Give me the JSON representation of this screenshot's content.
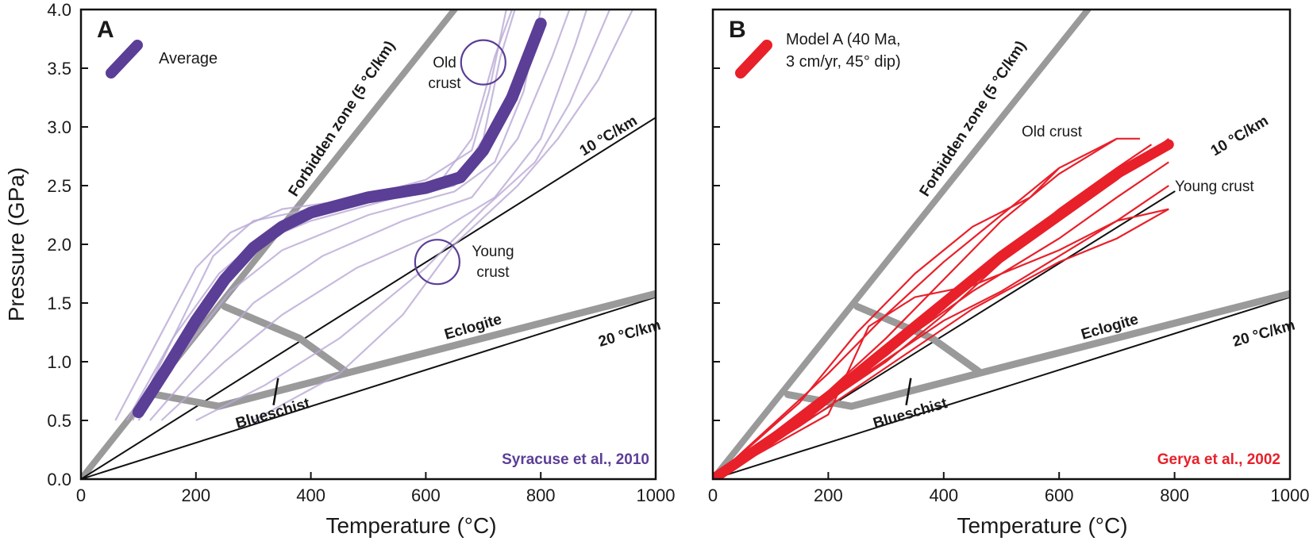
{
  "chart_data": [
    {
      "panel": "A",
      "type": "line",
      "xlabel": "Temperature (°C)",
      "ylabel": "Pressure (GPa)",
      "xlim": [
        0,
        1000
      ],
      "ylim": [
        0,
        4.0
      ],
      "x_ticks": [
        "0",
        "200",
        "400",
        "600",
        "800",
        "1000"
      ],
      "y_ticks": [
        "0.0",
        "0.5",
        "1.0",
        "1.5",
        "2.0",
        "2.5",
        "3.0",
        "3.5",
        "4.0"
      ],
      "legend": {
        "label": "Average",
        "placement": "top-left",
        "color": "#5b3e96"
      },
      "source": "Syracuse et al., 2010",
      "source_color": "#5b3e96",
      "colors": {
        "average": "#5b3e96",
        "individual": "#b9a9d4",
        "reference": "#9a9a9a"
      },
      "reference_lines": [
        {
          "label": "Forbidden zone (5 °C/km)",
          "points": [
            [
              0,
              0
            ],
            [
              650,
              4.0
            ]
          ]
        },
        {
          "label": "10 °C/km",
          "points": [
            [
              0,
              0
            ],
            [
              1000,
              3.08
            ]
          ]
        },
        {
          "label": "20 °C/km",
          "points": [
            [
              0,
              0
            ],
            [
              1000,
              1.55
            ]
          ]
        }
      ],
      "facies_boundaries": [
        {
          "label": "Eclogite",
          "points": [
            [
              130,
              0.72
            ],
            [
              240,
              0.62
            ],
            [
              460,
              0.9
            ],
            [
              1000,
              1.58
            ]
          ]
        },
        {
          "label": "",
          "points": [
            [
              250,
              1.47
            ],
            [
              380,
              1.2
            ],
            [
              460,
              0.92
            ]
          ]
        }
      ],
      "facies_label_blueschist": "Blueschist",
      "series": [
        {
          "name": "Average",
          "points": [
            [
              100,
              0.57
            ],
            [
              150,
              0.95
            ],
            [
              200,
              1.35
            ],
            [
              250,
              1.7
            ],
            [
              300,
              1.97
            ],
            [
              350,
              2.15
            ],
            [
              400,
              2.27
            ],
            [
              500,
              2.4
            ],
            [
              600,
              2.48
            ],
            [
              660,
              2.57
            ],
            [
              700,
              2.8
            ],
            [
              750,
              3.25
            ],
            [
              800,
              3.88
            ]
          ]
        }
      ],
      "individual_paths": [
        [
          [
            60,
            0.5
          ],
          [
            130,
            1.15
          ],
          [
            200,
            1.8
          ],
          [
            260,
            2.1
          ],
          [
            350,
            2.3
          ],
          [
            500,
            2.4
          ],
          [
            620,
            2.5
          ],
          [
            680,
            2.9
          ],
          [
            720,
            3.6
          ],
          [
            750,
            4.0
          ]
        ],
        [
          [
            80,
            0.5
          ],
          [
            160,
            1.2
          ],
          [
            240,
            1.75
          ],
          [
            300,
            2.0
          ],
          [
            400,
            2.2
          ],
          [
            550,
            2.4
          ],
          [
            650,
            2.5
          ],
          [
            700,
            2.9
          ],
          [
            730,
            3.6
          ],
          [
            755,
            4.0
          ]
        ],
        [
          [
            100,
            0.5
          ],
          [
            180,
            1.1
          ],
          [
            260,
            1.6
          ],
          [
            350,
            1.95
          ],
          [
            500,
            2.25
          ],
          [
            650,
            2.45
          ],
          [
            720,
            2.7
          ],
          [
            770,
            3.3
          ],
          [
            800,
            4.0
          ]
        ],
        [
          [
            120,
            0.5
          ],
          [
            200,
            0.95
          ],
          [
            300,
            1.5
          ],
          [
            420,
            1.9
          ],
          [
            560,
            2.2
          ],
          [
            680,
            2.4
          ],
          [
            760,
            2.9
          ],
          [
            820,
            3.6
          ],
          [
            850,
            4.0
          ]
        ],
        [
          [
            140,
            0.5
          ],
          [
            250,
            1.0
          ],
          [
            350,
            1.4
          ],
          [
            480,
            1.8
          ],
          [
            620,
            2.1
          ],
          [
            720,
            2.4
          ],
          [
            800,
            2.9
          ],
          [
            860,
            3.7
          ],
          [
            880,
            4.0
          ]
        ],
        [
          [
            200,
            0.5
          ],
          [
            320,
            0.8
          ],
          [
            450,
            1.2
          ],
          [
            600,
            1.8
          ],
          [
            700,
            2.3
          ],
          [
            790,
            2.7
          ],
          [
            850,
            3.2
          ],
          [
            920,
            4.0
          ]
        ],
        [
          [
            300,
            0.5
          ],
          [
            450,
            0.9
          ],
          [
            560,
            1.4
          ],
          [
            650,
            2.0
          ],
          [
            760,
            2.5
          ],
          [
            830,
            2.9
          ],
          [
            900,
            3.4
          ],
          [
            960,
            4.0
          ]
        ],
        [
          [
            90,
            0.5
          ],
          [
            170,
            1.3
          ],
          [
            230,
            1.9
          ],
          [
            300,
            2.2
          ],
          [
            450,
            2.35
          ],
          [
            600,
            2.55
          ],
          [
            680,
            2.8
          ],
          [
            710,
            3.3
          ],
          [
            740,
            4.0
          ]
        ]
      ],
      "annotations": [
        {
          "text": [
            "Old",
            "crust"
          ],
          "circle": [
            700,
            3.55
          ]
        },
        {
          "text": [
            "Young",
            "crust"
          ],
          "circle": [
            620,
            1.85
          ]
        }
      ]
    },
    {
      "panel": "B",
      "type": "line",
      "xlabel": "Temperature (°C)",
      "ylabel": "",
      "xlim": [
        0,
        1000
      ],
      "ylim": [
        0,
        4.0
      ],
      "x_ticks": [
        "0",
        "200",
        "400",
        "600",
        "800",
        "1000"
      ],
      "legend": {
        "label": "Model A (40 Ma, 3 cm/yr, 45° dip)",
        "lines": [
          "Model A (40 Ma,",
          "3 cm/yr, 45° dip)"
        ],
        "placement": "top-left",
        "color": "#e8202a"
      },
      "source": "Gerya et al., 2002",
      "source_color": "#e8202a",
      "colors": {
        "model": "#e8202a",
        "reference": "#9a9a9a"
      },
      "reference_lines": [
        {
          "label": "Forbidden zone (5 °C/km)",
          "points": [
            [
              0,
              0
            ],
            [
              650,
              4.0
            ]
          ]
        },
        {
          "label": "10 °C/km",
          "points": [
            [
              0,
              0
            ],
            [
              800,
              2.45
            ]
          ]
        },
        {
          "label": "20 °C/km",
          "points": [
            [
              0,
              0
            ],
            [
              1000,
              1.55
            ]
          ]
        }
      ],
      "facies_boundaries": [
        {
          "label": "Eclogite",
          "points": [
            [
              130,
              0.72
            ],
            [
              240,
              0.62
            ],
            [
              460,
              0.9
            ],
            [
              1000,
              1.58
            ]
          ]
        },
        {
          "label": "",
          "points": [
            [
              250,
              1.47
            ],
            [
              380,
              1.2
            ],
            [
              460,
              0.92
            ]
          ]
        }
      ],
      "facies_label_blueschist": "Blueschist",
      "series": [
        {
          "name": "Model A (40 Ma, 3 cm/yr, 45° dip)",
          "points": [
            [
              0,
              0
            ],
            [
              150,
              0.5
            ],
            [
              300,
              1.1
            ],
            [
              400,
              1.5
            ],
            [
              500,
              1.9
            ],
            [
              600,
              2.25
            ],
            [
              700,
              2.6
            ],
            [
              790,
              2.85
            ]
          ]
        }
      ],
      "individual_paths": [
        [
          [
            0,
            0
          ],
          [
            200,
            0.9
          ],
          [
            300,
            1.4
          ],
          [
            400,
            1.85
          ],
          [
            500,
            2.25
          ],
          [
            600,
            2.65
          ],
          [
            700,
            2.9
          ]
        ],
        [
          [
            0,
            0
          ],
          [
            200,
            0.75
          ],
          [
            300,
            1.2
          ],
          [
            400,
            1.7
          ],
          [
            500,
            2.2
          ],
          [
            600,
            2.6
          ],
          [
            700,
            2.9
          ],
          [
            740,
            2.9
          ]
        ],
        [
          [
            0,
            0
          ],
          [
            150,
            0.65
          ],
          [
            250,
            1.25
          ],
          [
            350,
            1.75
          ],
          [
            450,
            2.15
          ],
          [
            550,
            2.4
          ],
          [
            600,
            2.65
          ]
        ],
        [
          [
            0,
            0
          ],
          [
            200,
            0.7
          ],
          [
            300,
            1.05
          ],
          [
            400,
            1.45
          ],
          [
            500,
            1.9
          ],
          [
            600,
            2.3
          ],
          [
            700,
            2.65
          ],
          [
            760,
            2.85
          ]
        ],
        [
          [
            0,
            0
          ],
          [
            300,
            1.0
          ],
          [
            400,
            1.4
          ],
          [
            500,
            1.85
          ],
          [
            600,
            2.2
          ],
          [
            700,
            2.55
          ],
          [
            790,
            2.9
          ]
        ],
        [
          [
            0,
            0
          ],
          [
            250,
            0.9
          ],
          [
            350,
            1.25
          ],
          [
            450,
            1.6
          ],
          [
            600,
            2.05
          ],
          [
            700,
            2.4
          ],
          [
            790,
            2.7
          ]
        ],
        [
          [
            0,
            0
          ],
          [
            250,
            0.85
          ],
          [
            400,
            1.35
          ],
          [
            500,
            1.6
          ],
          [
            600,
            1.9
          ],
          [
            700,
            2.2
          ],
          [
            790,
            2.5
          ]
        ],
        [
          [
            0,
            0
          ],
          [
            150,
            0.45
          ],
          [
            300,
            0.95
          ],
          [
            450,
            1.45
          ],
          [
            600,
            1.85
          ],
          [
            700,
            2.05
          ],
          [
            790,
            2.3
          ]
        ],
        [
          [
            0,
            0
          ],
          [
            200,
            0.55
          ],
          [
            270,
            1.3
          ],
          [
            350,
            1.55
          ],
          [
            450,
            1.65
          ],
          [
            600,
            1.95
          ],
          [
            700,
            2.2
          ],
          [
            790,
            2.3
          ]
        ]
      ],
      "annotations": [
        {
          "text": [
            "Old crust"
          ]
        },
        {
          "text": [
            "Young crust"
          ]
        }
      ]
    }
  ]
}
